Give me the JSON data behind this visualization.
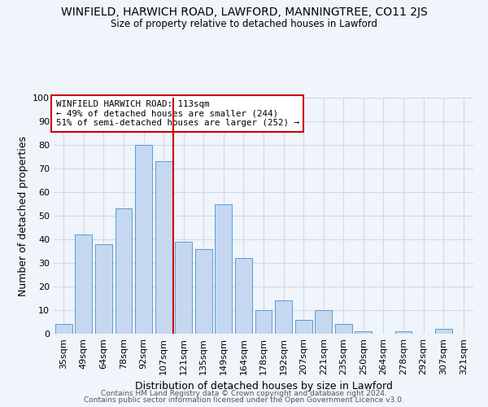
{
  "title": "WINFIELD, HARWICH ROAD, LAWFORD, MANNINGTREE, CO11 2JS",
  "subtitle": "Size of property relative to detached houses in Lawford",
  "xlabel": "Distribution of detached houses by size in Lawford",
  "ylabel": "Number of detached properties",
  "categories": [
    "35sqm",
    "49sqm",
    "64sqm",
    "78sqm",
    "92sqm",
    "107sqm",
    "121sqm",
    "135sqm",
    "149sqm",
    "164sqm",
    "178sqm",
    "192sqm",
    "207sqm",
    "221sqm",
    "235sqm",
    "250sqm",
    "264sqm",
    "278sqm",
    "292sqm",
    "307sqm",
    "321sqm"
  ],
  "values": [
    4,
    42,
    38,
    53,
    80,
    73,
    39,
    36,
    55,
    32,
    10,
    14,
    6,
    10,
    4,
    1,
    0,
    1,
    0,
    2,
    0
  ],
  "bar_color": "#c5d8f0",
  "bar_edge_color": "#5b9bd5",
  "vline_x_index": 5.5,
  "vline_color": "#cc0000",
  "annotation_text": "WINFIELD HARWICH ROAD: 113sqm\n← 49% of detached houses are smaller (244)\n51% of semi-detached houses are larger (252) →",
  "annotation_box_color": "#ffffff",
  "annotation_box_edge_color": "#cc0000",
  "ylim": [
    0,
    100
  ],
  "grid_color": "#d0d8e8",
  "footer1": "Contains HM Land Registry data © Crown copyright and database right 2024.",
  "footer2": "Contains public sector information licensed under the Open Government Licence v3.0.",
  "bg_color": "#f0f4fb"
}
